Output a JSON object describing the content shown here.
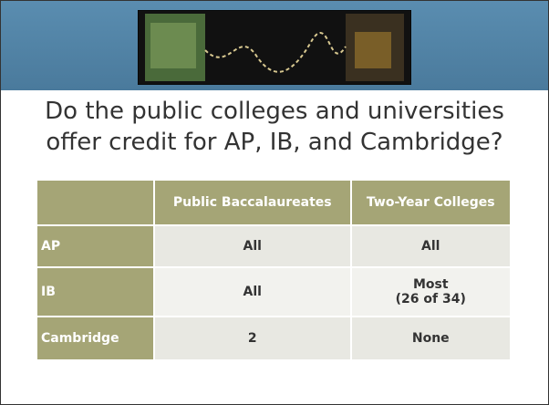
{
  "slide": {
    "title": [
      "Do the public colleges and universities",
      "offer credit for AP, IB, and Cambridge?"
    ],
    "table": {
      "header": [
        "Public Baccalaureates",
        "Two-Year Colleges"
      ],
      "rows": [
        {
          "label": "AP",
          "cells": [
            [
              "All"
            ],
            [
              "All"
            ]
          ]
        },
        {
          "label": "IB",
          "cells": [
            [
              "All"
            ],
            [
              "Most",
              "(26 of 34)"
            ]
          ]
        },
        {
          "label": "Cambridge",
          "cells": [
            [
              "2"
            ],
            [
              "None"
            ]
          ]
        }
      ]
    }
  }
}
